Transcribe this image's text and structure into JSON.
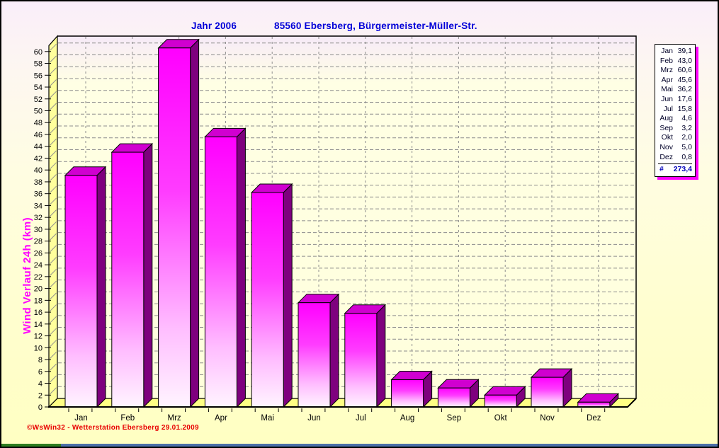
{
  "header": {
    "title_left": "Jahr  2006",
    "title_right": "85560 Ebersberg, Bürgermeister-Müller-Str."
  },
  "y_axis_title": "Wind Verlauf 24h  (km)",
  "footer": {
    "text": "©WsWin32 - Wetterstation Ebersberg  29.01.2009"
  },
  "legend": {
    "entries": [
      {
        "label": "Jan",
        "value": "39,1"
      },
      {
        "label": "Feb",
        "value": "43,0"
      },
      {
        "label": "Mrz",
        "value": "60,6"
      },
      {
        "label": "Apr",
        "value": "45,6"
      },
      {
        "label": "Mai",
        "value": "36,2"
      },
      {
        "label": "Jun",
        "value": "17,6"
      },
      {
        "label": "Jul",
        "value": "15,8"
      },
      {
        "label": "Aug",
        "value": "4,6"
      },
      {
        "label": "Sep",
        "value": "3,2"
      },
      {
        "label": "Okt",
        "value": "2,0"
      },
      {
        "label": "Nov",
        "value": "5,0"
      },
      {
        "label": "Dez",
        "value": "0,8"
      }
    ],
    "total_label": "#",
    "total_value": "273,4"
  },
  "chart_data": {
    "type": "bar",
    "title": "Jahr 2006 — 85560 Ebersberg, Bürgermeister-Müller-Str.",
    "categories": [
      "Jan",
      "Feb",
      "Mrz",
      "Apr",
      "Mai",
      "Jun",
      "Jul",
      "Aug",
      "Sep",
      "Okt",
      "Nov",
      "Dez"
    ],
    "values": [
      39.1,
      43.0,
      60.6,
      45.6,
      36.2,
      17.6,
      15.8,
      4.6,
      3.2,
      2.0,
      5.0,
      0.8
    ],
    "total": 273.4,
    "xlabel": "",
    "ylabel": "Wind Verlauf 24h (km)",
    "ylim": [
      0,
      62
    ],
    "ytick_step": 2,
    "grid": true,
    "legend_position": "right",
    "style": "3d-bars",
    "colors": {
      "bar_front_top": "#FF00FF",
      "bar_front_mid": "#FF3CFF",
      "bar_front_bottom": "#FFF4FF",
      "bar_side": "#7E007E",
      "bar_cap": "#D000D0",
      "wall_top": "#F6EAF8",
      "wall_bottom": "#FFFFDC",
      "side_wall": "#FFFF9C",
      "floor": "#FFFF84",
      "gridline": "#8C8C8C",
      "axis_text": "#000000",
      "title_text": "#0000D8",
      "y_title_text": "#FF00FF",
      "footer_text": "#E80000",
      "legend_total_text": "#0000B8"
    }
  }
}
